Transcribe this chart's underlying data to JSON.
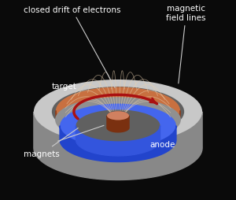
{
  "bg_color": "#0a0a0a",
  "title": "",
  "labels": {
    "closed_drift": "closed drift of electrons",
    "magnetic": "magnetic\nfield lines",
    "target": "target",
    "magnets": "magnets",
    "anode": "anode"
  },
  "colors": {
    "outer_ring_top": "#c8c8c8",
    "outer_ring_side": "#888888",
    "target_surface": "#c87040",
    "target_dark": "#8b4020",
    "blue_magnet": "#2244cc",
    "blue_magnet_light": "#4466ee",
    "blue_inner_side": "#3355dd",
    "center_magnet": "#a05030",
    "center_magnet_side": "#7a3010",
    "center_magnet_top": "#d08060",
    "drift_arrow": "#aa1111",
    "field_line": "#e8d0b0",
    "gray_base": "#606060",
    "gray_base_light": "#909090",
    "white_text": "#ffffff",
    "arrow_line": "#cccccc"
  }
}
